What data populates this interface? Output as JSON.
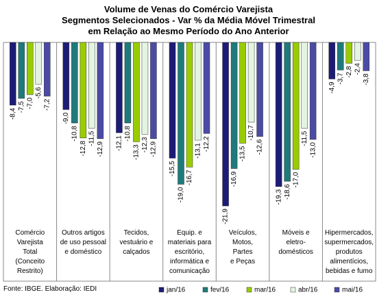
{
  "chart_data": {
    "type": "bar",
    "title": "Volume de Venas do Comércio Varejista\nSegmentos Selecionados - Var % da Média Móvel Trimestral\nem Relação ao Mesmo Período do Ano Anterior",
    "categories": [
      "Comércio\nVarejista\nTotal\n(Conceito\nRestrito)",
      "Outros artigos\nde uso pessoal\ne doméstico",
      "Tecidos,\nvestuário e\ncalçados",
      "Equip. e\nmateriais para\nescritório,\ninformática e\ncomunicação",
      "Veículos,\nMotos,\nPartes\ne Peças",
      "Móveis e\neletro-\ndomésticos",
      "Hipermercados,\nsupermercados,\nprodutos\nalimentícios,\nbebidas e fumo"
    ],
    "series": [
      {
        "name": "jan/16",
        "color": "#1c1c78",
        "values": [
          -8.4,
          -9.0,
          -12.1,
          -15.5,
          -21.9,
          -19.3,
          -4.9
        ],
        "value_labels": [
          "-8,4",
          "-9,0",
          "-12,1",
          "-15,5",
          "-21,9",
          "-19,3",
          "-4,9"
        ]
      },
      {
        "name": "fev/16",
        "color": "#1f7b7b",
        "values": [
          -7.5,
          -10.8,
          -10.8,
          -19.0,
          -16.9,
          -18.6,
          -3.7
        ],
        "value_labels": [
          "-7,5",
          "-10,8",
          "-10,8",
          "-19,0",
          "-16,9",
          "-18,6",
          "-3,7"
        ]
      },
      {
        "name": "mar/16",
        "color": "#99cc00",
        "values": [
          -7.0,
          -12.8,
          -13.3,
          -16.7,
          -13.5,
          -17.0,
          -2.8
        ],
        "value_labels": [
          "-7,0",
          "-12,8",
          "-13,3",
          "-16,7",
          "-13,5",
          "-17,0",
          "-2,8"
        ]
      },
      {
        "name": "abr/16",
        "color": "#e4f4e2",
        "values": [
          -5.6,
          -11.5,
          -12.3,
          -13.1,
          -10.7,
          -11.5,
          -2.4
        ],
        "value_labels": [
          "-5,6",
          "-11,5",
          "-12,3",
          "-13,1",
          "-10,7",
          "-11,5",
          "-2,4"
        ]
      },
      {
        "name": "mai/16",
        "color": "#4b4ba6",
        "values": [
          -7.2,
          -12.9,
          -12.9,
          -12.2,
          -12.6,
          -13.0,
          -3.8
        ],
        "value_labels": [
          "-7,2",
          "-12,9",
          "-12,9",
          "-12,2",
          "-12,6",
          "-13,0",
          "-3,8"
        ]
      }
    ],
    "ylim": [
      -24,
      0
    ],
    "source": "Fonte: IBGE. Elaboração: IEDI"
  }
}
